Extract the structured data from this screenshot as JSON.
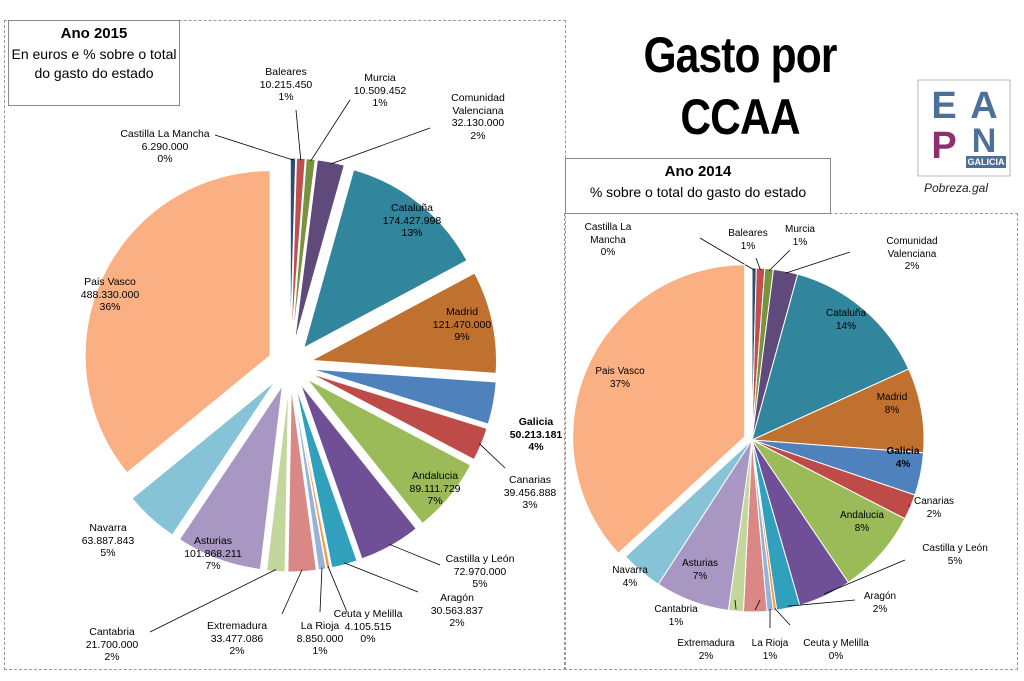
{
  "header": {
    "title_lines": [
      "Gasto por",
      "CCAA"
    ],
    "logo": {
      "letters": [
        "E",
        "A",
        "P",
        "N"
      ],
      "region": "GALICIA",
      "site": "Pobreza.gal"
    }
  },
  "chart_data": [
    {
      "type": "pie",
      "title": "Ano 2015",
      "subtitle": "En euros e % sobre o total do gasto do estado",
      "categories": [
        "Castilla La Mancha",
        "Baleares",
        "Murcia",
        "Comunidad Valenciana",
        "Cataluña",
        "Madrid",
        "Galicia",
        "Canarias",
        "Andalucia",
        "Castilla y León",
        "Aragón",
        "Ceuta y Melilla",
        "La Rioja",
        "Extremadura",
        "Cantabria",
        "Asturias",
        "Navarra",
        "Pais Vasco"
      ],
      "values": [
        6290000,
        10215450,
        10509452,
        32130000,
        174427998,
        121470000,
        50213181,
        39456888,
        89111729,
        72970000,
        30563837,
        4105515,
        8850000,
        33477086,
        21700000,
        101868211,
        63887843,
        488330000
      ],
      "value_labels": [
        "6.290.000",
        "10.215.450",
        "10.509.452",
        "32.130.000",
        "174.427.998",
        "121.470.000",
        "50.213.181",
        "39.456.888",
        "89.111.729",
        "72.970.000",
        "30.563.837",
        "4.105.515",
        "8.850.000",
        "33.477.086",
        "21.700.000",
        "101.868.211",
        "63.887.843",
        "488.330.000"
      ],
      "percent_labels": [
        "0%",
        "1%",
        "1%",
        "2%",
        "13%",
        "9%",
        "4%",
        "3%",
        "7%",
        "5%",
        "2%",
        "0%",
        "1%",
        "2%",
        "2%",
        "7%",
        "5%",
        "36%"
      ],
      "colors": [
        "#2c4d75",
        "#c0504d",
        "#77933c",
        "#604a7b",
        "#31859c",
        "#c0712f",
        "#4f81bd",
        "#be4b48",
        "#9bbb59",
        "#6f4f96",
        "#31a0bd",
        "#f79646",
        "#95b3d7",
        "#d98886",
        "#c3d69b",
        "#a797c2",
        "#86c3d6",
        "#fab083"
      ]
    },
    {
      "type": "pie",
      "title": "Ano 2014",
      "subtitle": "% sobre o total do gasto do estado",
      "categories": [
        "Castilla La Mancha",
        "Baleares",
        "Murcia",
        "Comunidad Valenciana",
        "Cataluña",
        "Madrid",
        "Galicia",
        "Canarias",
        "Andalucia",
        "Castilla y León",
        "Aragón",
        "Ceuta y Melilla",
        "La Rioja",
        "Extremadura",
        "Cantabria",
        "Asturias",
        "Navarra",
        "Pais Vasco"
      ],
      "values": [
        0.4,
        0.8,
        0.8,
        2.3,
        14,
        8,
        4,
        2.4,
        8,
        5,
        2.2,
        0.3,
        0.6,
        2.2,
        1.4,
        7,
        4,
        37
      ],
      "value_labels": [
        "0%",
        "1%",
        "1%",
        "2%",
        "14%",
        "8%",
        "4%",
        "2%",
        "8%",
        "5%",
        "2%",
        "0%",
        "1%",
        "2%",
        "1%",
        "7%",
        "4%",
        "37%"
      ],
      "colors": [
        "#2c4d75",
        "#c0504d",
        "#77933c",
        "#604a7b",
        "#31859c",
        "#c0712f",
        "#4f81bd",
        "#be4b48",
        "#9bbb59",
        "#6f4f96",
        "#31a0bd",
        "#f79646",
        "#95b3d7",
        "#d98886",
        "#c3d69b",
        "#a797c2",
        "#86c3d6",
        "#fab083"
      ]
    }
  ]
}
